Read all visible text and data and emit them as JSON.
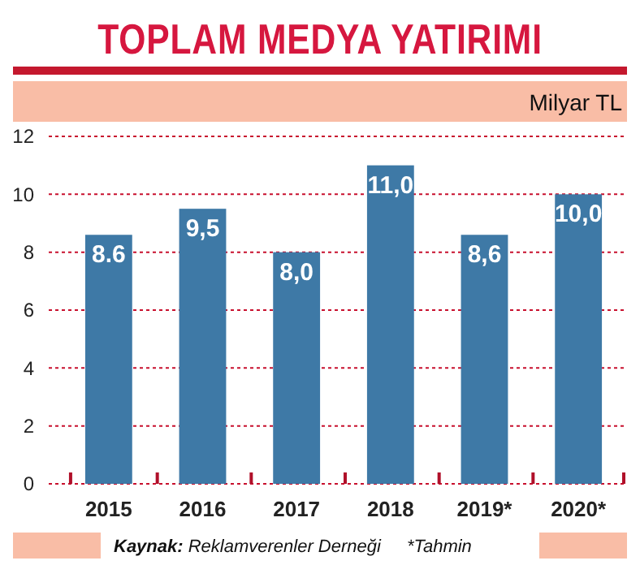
{
  "chart_data": {
    "type": "bar",
    "title": "TOPLAM MEDYA YATIRIMI",
    "ylabel": "Milyar TL",
    "categories": [
      "2015",
      "2016",
      "2017",
      "2018",
      "2019*",
      "2020*"
    ],
    "values": [
      8.6,
      9.5,
      8.0,
      11.0,
      8.6,
      10.0
    ],
    "value_labels": [
      "8.6",
      "9,5",
      "8,0",
      "11,0",
      "8,6",
      "10,0"
    ],
    "color": "#3e79a6",
    "ylim": [
      0,
      12
    ],
    "yticks": [
      0,
      2,
      4,
      6,
      8,
      10,
      12
    ],
    "grid": "y",
    "annotations": [
      "Kaynak: Reklamverenler Derneği",
      "*Tahmin"
    ]
  }
}
